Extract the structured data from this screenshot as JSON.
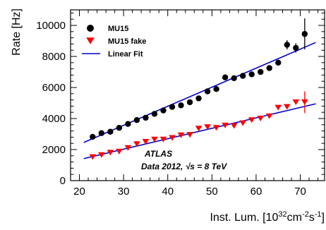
{
  "chart_data": {
    "type": "scatter",
    "xlabel": "Inst. Lum. [10^32cm^-2s^-1]",
    "ylabel": "Rate [Hz]",
    "xlim": [
      18,
      75.5
    ],
    "ylim": [
      0,
      11000
    ],
    "xticks": [
      20,
      30,
      40,
      50,
      60,
      70
    ],
    "yticks": [
      0,
      2000,
      4000,
      6000,
      8000,
      10000
    ],
    "grid": false,
    "legend_position": "top-left",
    "annotations": [
      "ATLAS",
      "Data 2012, √s = 8 TeV"
    ],
    "series": [
      {
        "name": "MU15",
        "marker": "circle",
        "color": "#000000",
        "x": [
          23,
          25,
          27,
          29,
          31,
          33,
          35,
          37,
          39,
          41,
          43,
          45,
          47,
          49,
          51,
          53,
          55,
          57,
          59,
          61,
          63,
          65,
          67,
          69,
          71
        ],
        "y": [
          2820,
          3060,
          3150,
          3400,
          3650,
          3900,
          4050,
          4300,
          4520,
          4750,
          4850,
          5050,
          5300,
          5750,
          5900,
          6650,
          6600,
          6750,
          6850,
          7000,
          7250,
          7600,
          8750,
          8550,
          9450
        ],
        "yerr": [
          0,
          0,
          0,
          0,
          0,
          0,
          0,
          0,
          0,
          0,
          0,
          0,
          0,
          0,
          0,
          0,
          0,
          0,
          0,
          0,
          0,
          0,
          300,
          300,
          1000
        ]
      },
      {
        "name": "MU15 fake",
        "marker": "triangle-down",
        "color": "#ff0000",
        "x": [
          23,
          25,
          27,
          29,
          31,
          33,
          35,
          37,
          39,
          41,
          43,
          45,
          47,
          49,
          51,
          53,
          55,
          57,
          59,
          61,
          63,
          65,
          67,
          69,
          71
        ],
        "y": [
          1520,
          1650,
          1800,
          1870,
          2100,
          2350,
          2500,
          2650,
          2650,
          2750,
          2920,
          2950,
          3350,
          3450,
          3400,
          3550,
          3520,
          3700,
          3900,
          4000,
          4150,
          4700,
          4750,
          5050,
          5050
        ],
        "yerr": [
          0,
          0,
          0,
          0,
          0,
          0,
          0,
          0,
          0,
          0,
          0,
          0,
          0,
          0,
          0,
          0,
          0,
          0,
          0,
          0,
          0,
          0,
          0,
          0,
          700
        ]
      },
      {
        "name": "Linear Fit",
        "type": "line",
        "color": "#0000cc",
        "segments": [
          {
            "x": [
              21,
              73.5
            ],
            "y": [
              2460,
              8900
            ]
          },
          {
            "x": [
              21,
              73.5
            ],
            "y": [
              1420,
              4950
            ]
          }
        ]
      }
    ]
  }
}
